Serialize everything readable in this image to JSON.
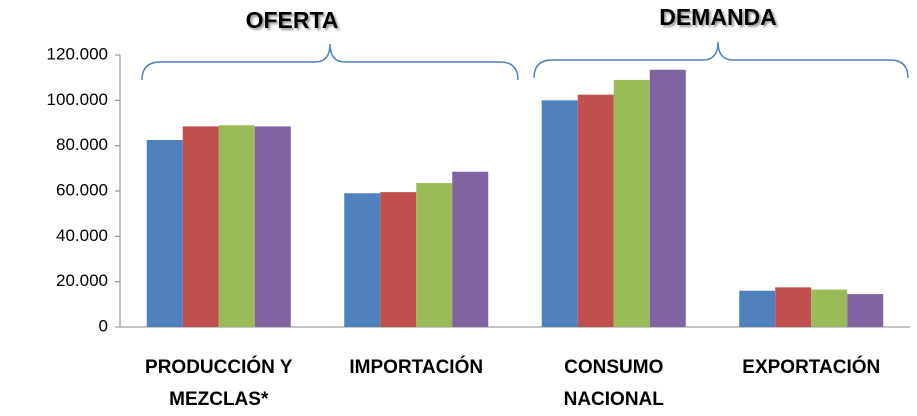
{
  "chart_data": {
    "type": "bar",
    "annotations": [
      "OFERTA",
      "DEMANDA"
    ],
    "categories": [
      "PRODUCCIÓN Y MEZCLAS*",
      "IMPORTACIÓN",
      "CONSUMO NACIONAL",
      "EXPORTACIÓN"
    ],
    "series": [
      {
        "color": "#4f81bd",
        "values": [
          82500,
          59000,
          100000,
          16000
        ]
      },
      {
        "color": "#c0504d",
        "values": [
          88500,
          59500,
          102500,
          17500
        ]
      },
      {
        "color": "#9bbb59",
        "values": [
          89000,
          63500,
          109000,
          16500
        ]
      },
      {
        "color": "#8064a2",
        "values": [
          88500,
          68500,
          113500,
          14500
        ]
      }
    ],
    "ylim": [
      0,
      120000
    ],
    "yticks": [
      0,
      {
        "value": 20000,
        "label": "20.000"
      },
      {
        "value": 40000,
        "label": "40.000"
      },
      {
        "value": 60000,
        "label": "60.000"
      },
      {
        "value": 80000,
        "label": "80.000"
      },
      {
        "value": 100000,
        "label": "100.000"
      },
      {
        "value": 120000,
        "label": "120.000"
      }
    ],
    "grid": false
  }
}
